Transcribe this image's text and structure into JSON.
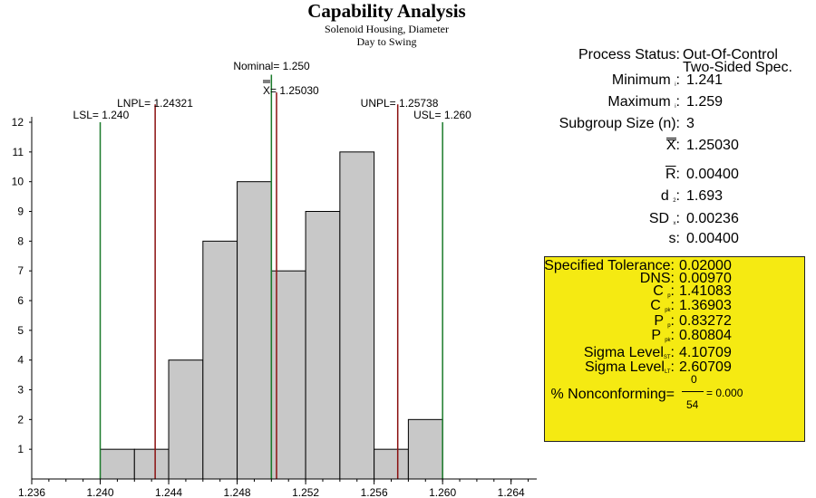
{
  "header": {
    "title": "Capability Analysis",
    "subtitle1": "Solenoid Housing, Diameter",
    "subtitle2": "Day to Swing"
  },
  "stats": {
    "process_status_label": "Process Status:",
    "process_status_value1": "Out-Of-Control",
    "process_status_value2": "Two-Sided Spec.",
    "minimum_label": "Minimum",
    "minimum_sub": "i",
    "minimum_value": "1.241",
    "maximum_label": "Maximum",
    "maximum_sub": "i",
    "maximum_value": "1.259",
    "subgroup_label": "Subgroup Size (n):",
    "subgroup_value": "3",
    "xbar_label": "X",
    "xbar_value": "1.25030",
    "rbar_label": "R",
    "rbar_value": "0.00400",
    "d2_label": "d",
    "d2_sub": "2",
    "d2_value": "1.693",
    "sd_label": "SD",
    "sd_sub": "x",
    "sd_value": "0.00236",
    "s_label": "s:",
    "s_value": "0.00400"
  },
  "capability": {
    "tolerance_label": "Specified Tolerance:",
    "tolerance_value": "0.02000",
    "dns_label": "DNS:",
    "dns_value": "0.00970",
    "cp_label": "C",
    "cp_sub": "p",
    "cp_value": "1.41083",
    "cpk_label": "C",
    "cpk_sub": "pk",
    "cpk_value": "1.36903",
    "pp_label": "P",
    "pp_sub": "p",
    "pp_value": "0.83272",
    "ppk_label": "P",
    "ppk_sub": "pk",
    "ppk_value": "0.80804",
    "sigma_st_label": "Sigma Level",
    "sigma_st_sub": "ST",
    "sigma_st_value": "4.10709",
    "sigma_lt_label": "Sigma Level",
    "sigma_lt_sub": "LT",
    "sigma_lt_value": "2.60709",
    "nonconf_label": "% Nonconforming=",
    "nonconf_numerator": "0",
    "nonconf_denominator": "54",
    "nonconf_result": "=  0.000"
  },
  "chart_data": {
    "type": "bar",
    "bins": [
      {
        "lo": 1.24,
        "hi": 1.242,
        "count": 1
      },
      {
        "lo": 1.242,
        "hi": 1.244,
        "count": 1
      },
      {
        "lo": 1.244,
        "hi": 1.246,
        "count": 4
      },
      {
        "lo": 1.246,
        "hi": 1.248,
        "count": 8
      },
      {
        "lo": 1.248,
        "hi": 1.25,
        "count": 10
      },
      {
        "lo": 1.25,
        "hi": 1.252,
        "count": 7
      },
      {
        "lo": 1.252,
        "hi": 1.254,
        "count": 9
      },
      {
        "lo": 1.254,
        "hi": 1.256,
        "count": 11
      },
      {
        "lo": 1.256,
        "hi": 1.258,
        "count": 1
      },
      {
        "lo": 1.258,
        "hi": 1.26,
        "count": 2
      }
    ],
    "xlim": [
      1.236,
      1.2655
    ],
    "ylim": [
      0,
      12
    ],
    "x_ticks": [
      "1.236",
      "1.240",
      "1.244",
      "1.248",
      "1.252",
      "1.256",
      "1.260",
      "1.264"
    ],
    "y_ticks": [
      "1",
      "2",
      "3",
      "4",
      "5",
      "6",
      "7",
      "8",
      "9",
      "10",
      "11",
      "12"
    ],
    "ref_lines": [
      {
        "key": "lsl",
        "value": 1.24,
        "label": "LSL= 1.240",
        "color": "#1a7a2a",
        "top": 12
      },
      {
        "key": "lnpl",
        "value": 1.24321,
        "label": "LNPL= 1.24321",
        "color": "#8b1010",
        "top": 12.6
      },
      {
        "key": "nominal",
        "value": 1.25,
        "label": "Nominal= 1.250",
        "color": "#1a7a2a",
        "top": 13.6
      },
      {
        "key": "xbar",
        "value": 1.2503,
        "label": "X= 1.25030",
        "color": "#8b1010",
        "top": 13.0
      },
      {
        "key": "unpl",
        "value": 1.25738,
        "label": "UNPL= 1.25738",
        "color": "#8b1010",
        "top": 12.6
      },
      {
        "key": "usl",
        "value": 1.26,
        "label": "USL= 1.260",
        "color": "#1a7a2a",
        "top": 12
      }
    ],
    "bar_fill": "#c8c8c8"
  }
}
